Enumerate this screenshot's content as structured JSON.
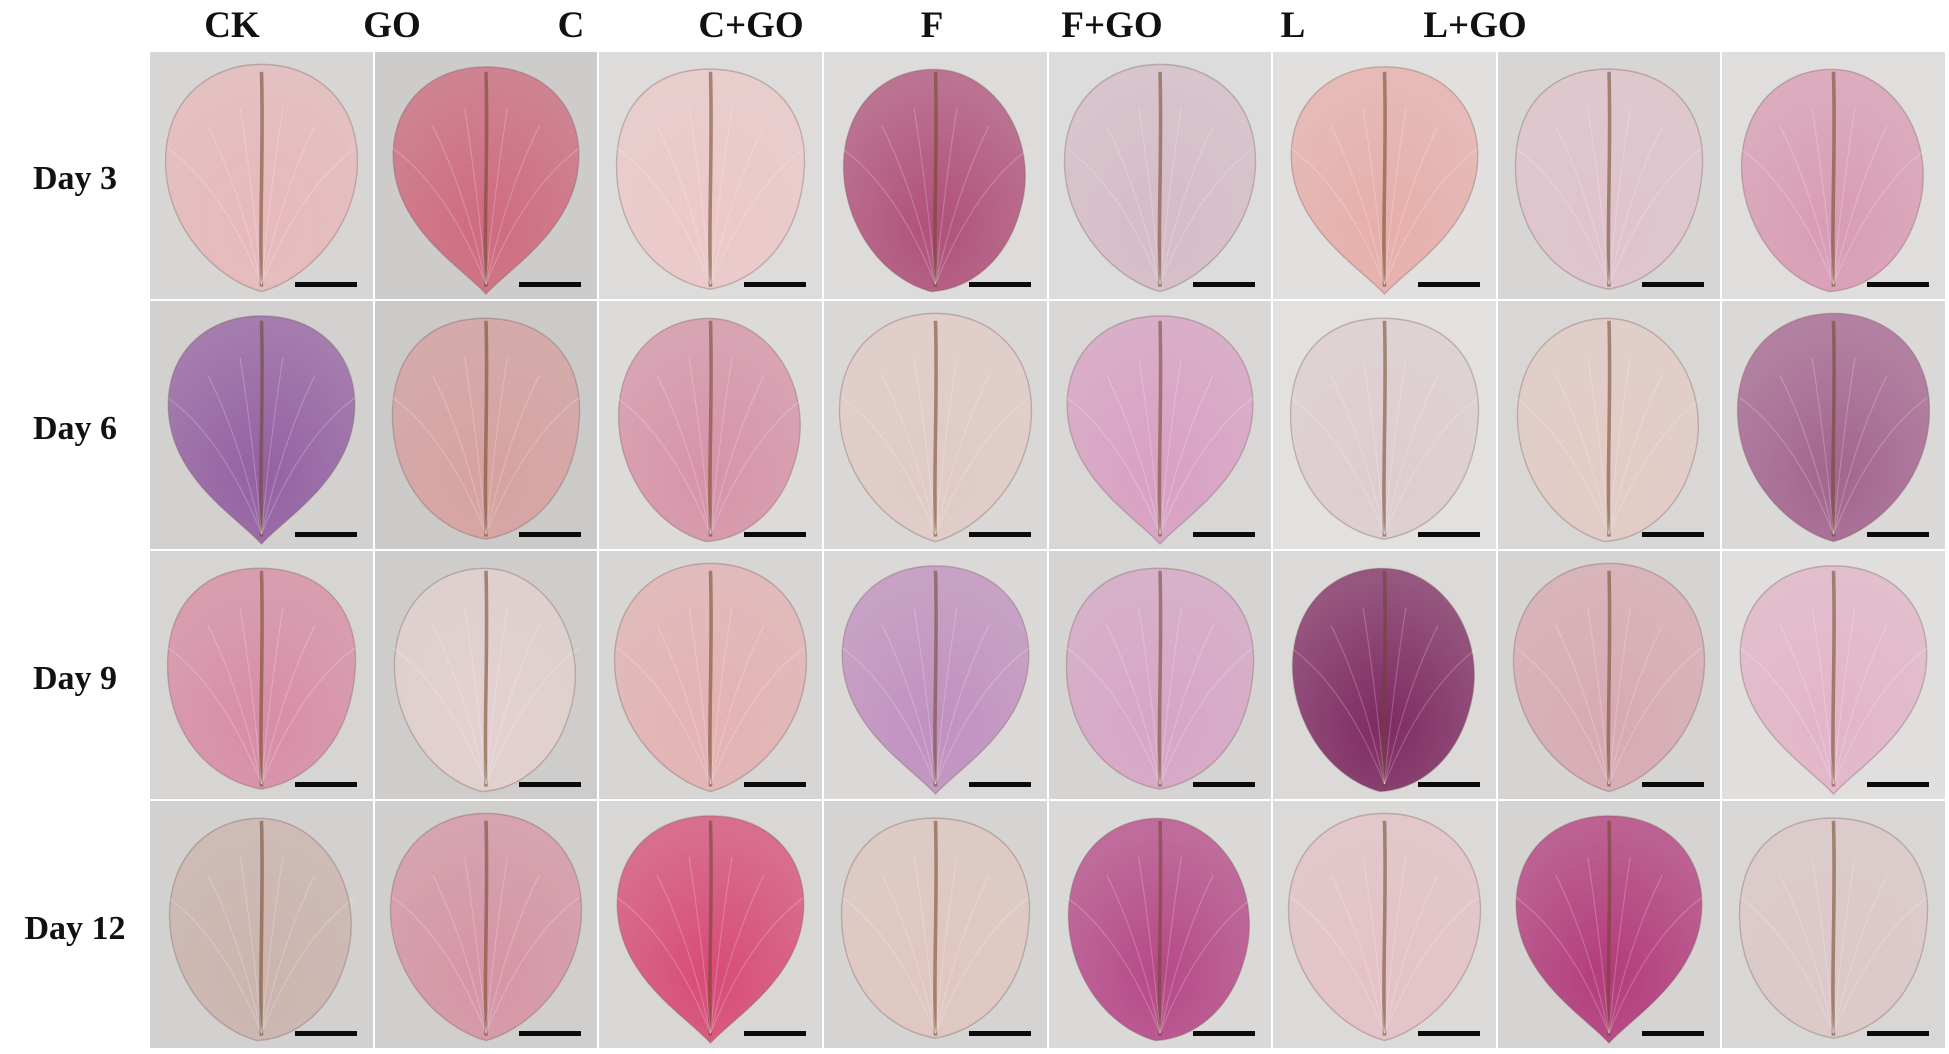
{
  "columns": [
    "CK",
    "GO",
    "C",
    "C+GO",
    "F",
    "F+GO",
    "L",
    "L+GO"
  ],
  "rows": [
    "Day 3",
    "Day 6",
    "Day 9",
    "Day 12"
  ],
  "petal_colors": [
    [
      "#e7b9bb",
      "#cf6a7f",
      "#ecc8c9",
      "#b0507a",
      "#d6bcc7",
      "#e7aeaa",
      "#e0c3cc",
      "#d99bb4"
    ],
    [
      "#9460a2",
      "#d7a1a0",
      "#d792a8",
      "#e1cbc6",
      "#d9a0c3",
      "#ddcdce",
      "#e3cbc5",
      "#a4648f"
    ],
    [
      "#d88ca5",
      "#e3d1cf",
      "#e4b2b3",
      "#c090c0",
      "#d7a5c6",
      "#7e2a62",
      "#d8aab3",
      "#e2b4c8"
    ],
    [
      "#ccb4ae",
      "#d794a5",
      "#d84b77",
      "#e0c7c0",
      "#b64888",
      "#e4c2c6",
      "#b33b7c",
      "#dcc8c8"
    ]
  ],
  "background_colors": [
    [
      "#d8d6d4",
      "#cdccca",
      "#dedcda",
      "#dddcda",
      "#dcdcdc",
      "#e2e0de",
      "#d7d6d5",
      "#e0dedc"
    ],
    [
      "#d2d1cf",
      "#cbcac8",
      "#dddbd9",
      "#d9d8d6",
      "#d9d7d6",
      "#e3e1df",
      "#d9d7d5",
      "#dbd9d7"
    ],
    [
      "#d7d5d3",
      "#cfcdcb",
      "#d8d6d4",
      "#dbd9d7",
      "#d6d4d3",
      "#dcdad8",
      "#d6d4d2",
      "#e1dfdd"
    ],
    [
      "#d3d1cf",
      "#d1cfcd",
      "#d9d7d5",
      "#d6d4d2",
      "#dbd9d7",
      "#dcdad8",
      "#d6d4d2",
      "#d9d7d5"
    ]
  ],
  "scale_bar_color": "#0b0b0b",
  "header_text_color": "#111111"
}
